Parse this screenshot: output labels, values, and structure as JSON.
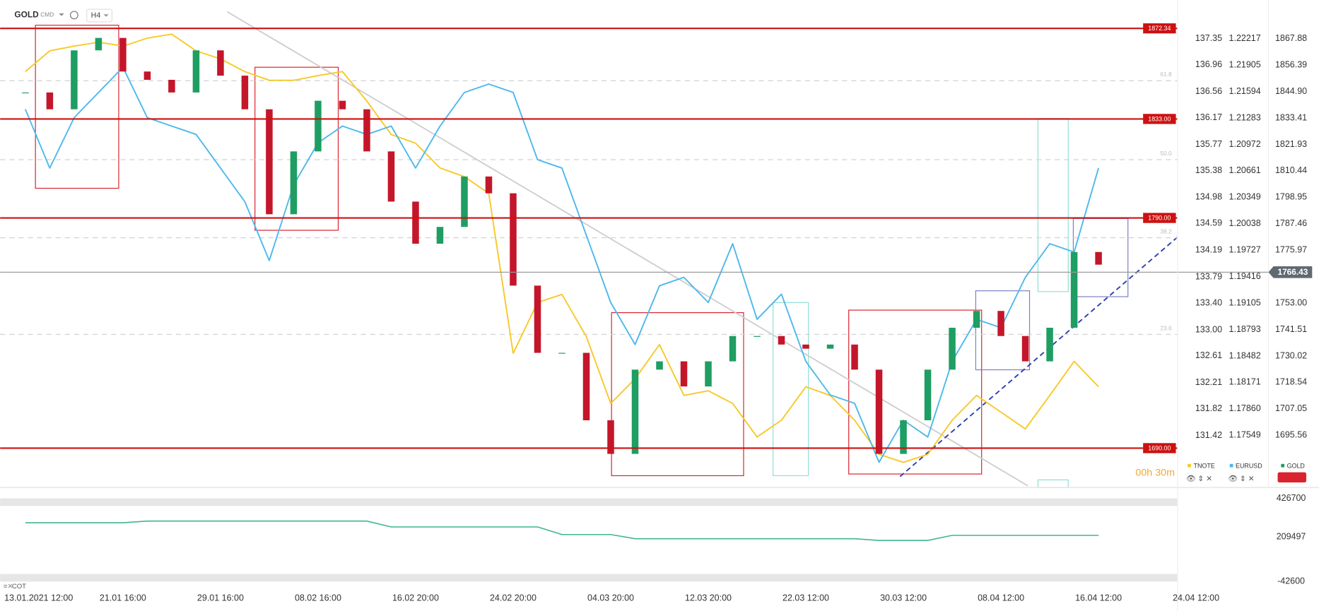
{
  "header": {
    "symbol": "GOLD",
    "market": "CMD",
    "interval": "H4"
  },
  "timer": "00h 30m",
  "chart_data": [
    {
      "type": "line",
      "categories": [
        "13.01.2021 12:00",
        null,
        null,
        null,
        "21.01 16:00",
        null,
        null,
        null,
        "29.01 16:00",
        null,
        null,
        null,
        "08.02 16:00",
        null,
        null,
        null,
        "16.02 20:00",
        null,
        null,
        null,
        "24.02 20:00",
        null,
        null,
        null,
        "04.03 20:00",
        null,
        null,
        null,
        "12.03 20:00",
        null,
        null,
        null,
        "22.03 12:00",
        null,
        null,
        null,
        "30.03 12:00",
        null,
        null,
        null,
        "08.04 12:00",
        null,
        null,
        null,
        "16.04 12:00",
        null,
        null,
        null,
        "24.04 12:00"
      ],
      "series": [
        {
          "name": "TNOTE",
          "color": "#f7c928",
          "style": "line",
          "ylim": [
            130.67,
            137.93
          ],
          "yticks": [
            137.35,
            136.96,
            136.56,
            136.17,
            135.77,
            135.38,
            134.98,
            134.59,
            134.19,
            133.79,
            {
              "value": 133.4,
              "label": "133.40"
            },
            {
              "value": 133,
              "label": "133.00"
            },
            132.61,
            132.21,
            131.82,
            131.42
          ],
          "values": [
            136.86,
            137.17,
            137.24,
            137.3,
            137.24,
            137.36,
            137.42,
            137.17,
            137.05,
            136.86,
            136.73,
            136.73,
            136.8,
            136.86,
            136.42,
            135.92,
            135.79,
            135.42,
            135.29,
            135.04,
            132.65,
            133.41,
            133.53,
            132.9,
            131.9,
            132.27,
            132.78,
            132.02,
            132.09,
            131.9,
            131.4,
            131.65,
            132.15,
            132.02,
            131.65,
            131.14,
            131.02,
            131.14,
            131.65,
            132.02,
            131.77,
            131.52,
            132.02,
            132.53,
            132.15,
            null,
            null,
            null,
            null
          ]
        },
        {
          "name": "EURUSD",
          "color": "#4db8ec",
          "style": "line",
          "ylim": [
            1.16955,
            1.22672
          ],
          "yticks": [
            1.22217,
            1.21905,
            1.21594,
            1.21283,
            1.20972,
            1.20661,
            1.20349,
            1.20038,
            1.19727,
            1.19416,
            1.19105,
            1.18793,
            1.18482,
            1.18171,
            {
              "value": 1.1786,
              "label": "1.17860"
            },
            1.17549
          ],
          "values": [
            1.21386,
            1.20694,
            1.21287,
            1.21584,
            1.21881,
            1.21287,
            1.21188,
            1.2109,
            1.20694,
            1.20298,
            1.19606,
            1.20496,
            1.20991,
            1.21188,
            1.2109,
            1.21188,
            1.20694,
            1.21188,
            1.21584,
            1.21683,
            1.21584,
            1.20793,
            1.20694,
            1.19903,
            1.19112,
            1.18617,
            1.19309,
            1.19408,
            1.19112,
            1.19804,
            1.18914,
            1.1921,
            1.18419,
            1.18024,
            1.17925,
            1.17232,
            1.17727,
            1.17529,
            1.18419,
            1.18914,
            1.18815,
            1.19408,
            1.19804,
            1.19705,
            1.20694,
            null,
            null,
            null,
            null
          ]
        },
        {
          "name": "GOLD",
          "color": "#1e9e62",
          "down_color": "#c4162a",
          "style": "candle",
          "ylim": [
            1673.65,
            1884.67
          ],
          "yticks": [
            1867.88,
            1856.39,
            {
              "value": 1844.9,
              "label": "1844.90"
            },
            1833.41,
            1821.93,
            1810.44,
            1798.95,
            1787.46,
            1775.97,
            {
              "value": 1753,
              "label": "1753.00"
            },
            1741.51,
            1730.02,
            1718.54,
            1707.05,
            1695.56
          ],
          "values": [
            1844.5,
            1837.2,
            1862.8,
            1868.2,
            1853.6,
            1850.0,
            1844.5,
            1862.8,
            1851.8,
            1837.2,
            1791.6,
            1818.9,
            1840.9,
            1837.2,
            1818.9,
            1797.1,
            1778.8,
            1786.1,
            1808.0,
            1800.7,
            1760.6,
            1731.4,
            1731.4,
            1702.1,
            1687.5,
            1724.1,
            1727.7,
            1716.8,
            1727.7,
            1738.7,
            1738.7,
            1735.0,
            1733.2,
            1735.0,
            1724.1,
            1687.5,
            1702.1,
            1724.1,
            1742.3,
            1749.6,
            1738.7,
            1727.7,
            1742.3,
            1775.2,
            1769.7,
            null,
            null,
            null,
            null
          ]
        }
      ],
      "current_price": 1766.43,
      "levels": [
        1872.34,
        {
          "value": 1833,
          "label": "1833.00"
        },
        {
          "value": 1790,
          "label": "1790.00"
        },
        {
          "value": 1690,
          "label": "1690.00"
        }
      ],
      "fib_levels": [
        {
          "value": 1849.6,
          "label": "61.8"
        },
        {
          "value": 1815.3,
          "label": "50.0"
        },
        {
          "value": 1781.4,
          "label": "38.2"
        },
        {
          "value": 1739.4,
          "label": "23.6"
        }
      ]
    },
    {
      "type": "line",
      "title": "COT",
      "color": "#3fb58e",
      "ylim": [
        -42600,
        426700
      ],
      "yticks": [
        426700,
        209497,
        -42600
      ],
      "values": [
        289240,
        289240,
        289240,
        289240,
        289240,
        298720,
        298720,
        298720,
        298720,
        298720,
        298720,
        298720,
        298720,
        298720,
        298720,
        265540,
        265540,
        265540,
        265540,
        265540,
        265540,
        265540,
        222880,
        222880,
        222880,
        199180,
        199180,
        199180,
        199180,
        199180,
        199180,
        199180,
        199180,
        199180,
        199180,
        189700,
        189700,
        189700,
        218140,
        218140,
        218140,
        218140,
        218140,
        218140,
        218140,
        null,
        null,
        null,
        null
      ]
    }
  ]
}
